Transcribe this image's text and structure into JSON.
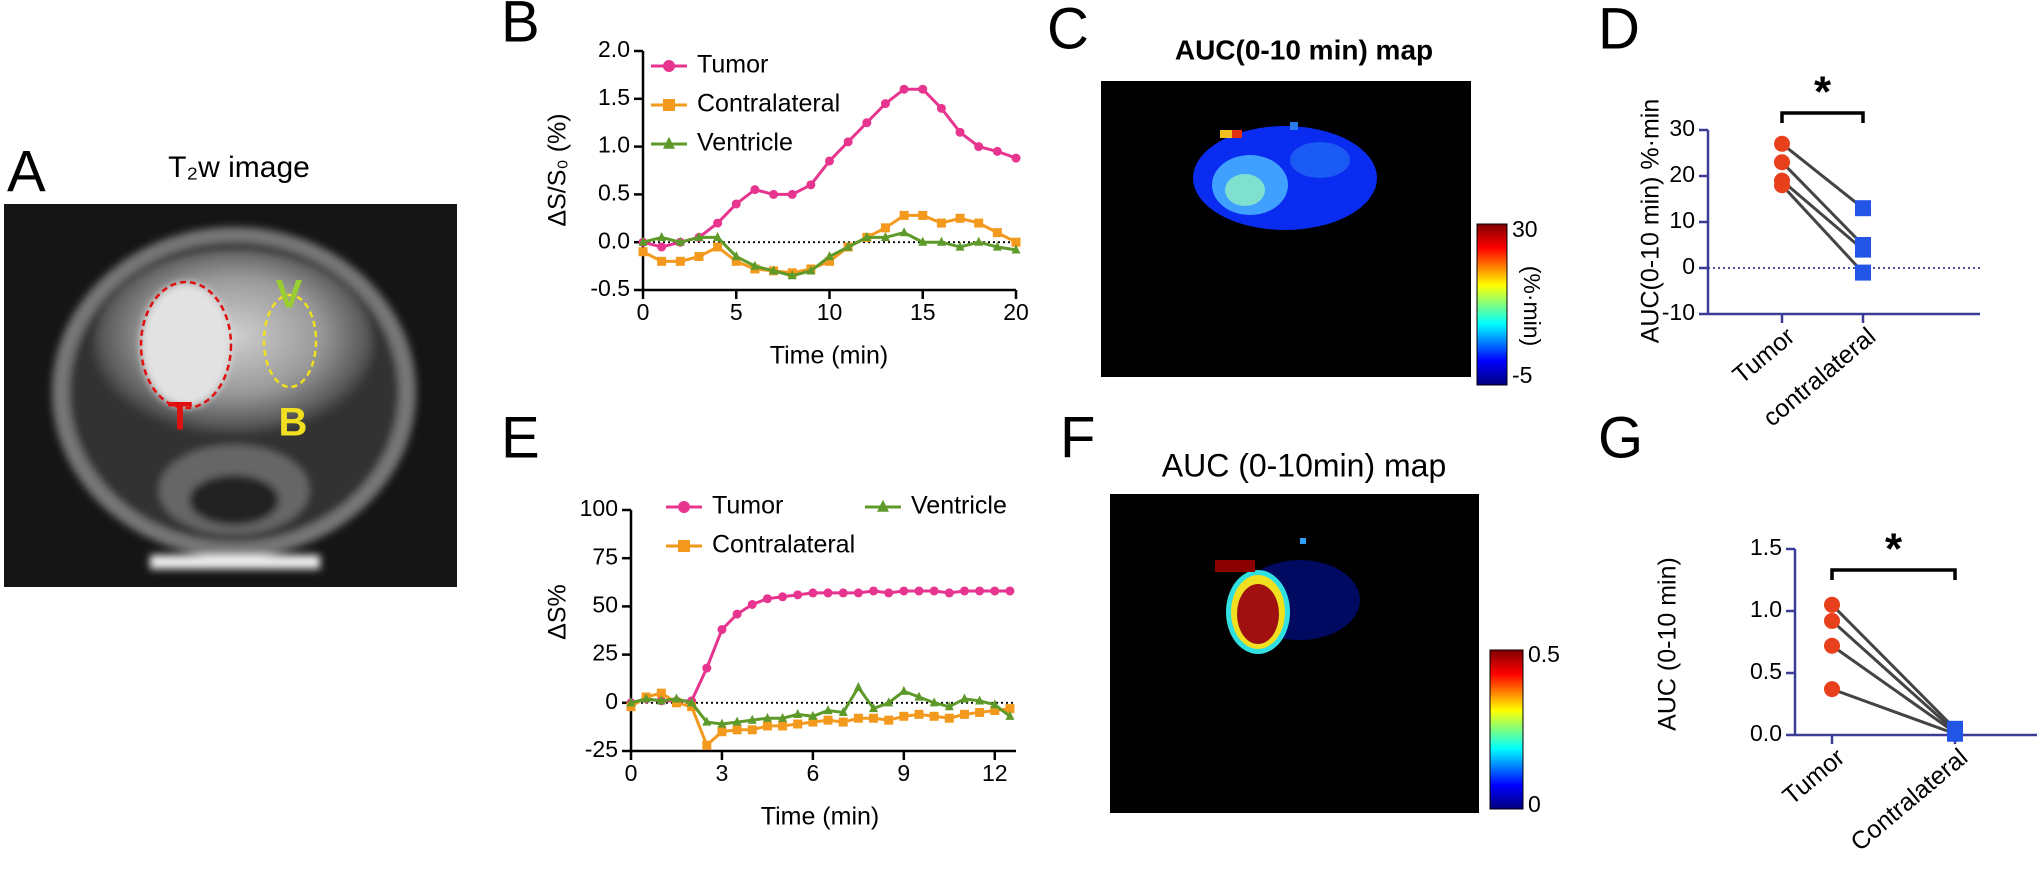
{
  "chart_data": [
    {
      "panel": "B",
      "type": "line",
      "ylabel": "ΔS/S₀ (%)",
      "xlabel": "Time (min)",
      "x": [
        0,
        1,
        2,
        3,
        4,
        5,
        6,
        7,
        8,
        9,
        10,
        11,
        12,
        13,
        14,
        15,
        16,
        17,
        18,
        19,
        20
      ],
      "series": [
        {
          "name": "Tumor",
          "color": "#e6348f",
          "marker": "circle",
          "values": [
            0,
            -0.05,
            0,
            0.05,
            0.2,
            0.4,
            0.55,
            0.5,
            0.5,
            0.6,
            0.85,
            1.05,
            1.25,
            1.45,
            1.6,
            1.6,
            1.4,
            1.15,
            1.0,
            0.95,
            0.88
          ]
        },
        {
          "name": "Contralateral",
          "color": "#f39a1e",
          "marker": "square",
          "values": [
            -0.1,
            -0.2,
            -0.2,
            -0.15,
            -0.05,
            -0.2,
            -0.28,
            -0.3,
            -0.32,
            -0.28,
            -0.2,
            -0.05,
            0.05,
            0.15,
            0.28,
            0.28,
            0.2,
            0.25,
            0.2,
            0.1,
            0
          ]
        },
        {
          "name": "Ventricle",
          "color": "#5e9a2a",
          "marker": "triangle",
          "values": [
            0,
            0.05,
            0,
            0.05,
            0.05,
            -0.15,
            -0.25,
            -0.3,
            -0.35,
            -0.3,
            -0.15,
            -0.05,
            0.05,
            0.05,
            0.1,
            0,
            0,
            -0.05,
            0,
            -0.05,
            -0.08
          ]
        }
      ],
      "xlim": [
        0,
        20
      ],
      "ylim": [
        -0.5,
        2
      ],
      "xticks": [
        0,
        5,
        10,
        15,
        20
      ],
      "yticks": [
        {
          "value": 2,
          "label": "2.0"
        },
        1.5,
        {
          "value": 1,
          "label": "1.0"
        },
        0.5,
        {
          "value": 0,
          "label": "0.0"
        },
        -0.5
      ],
      "reference_line": 0,
      "axis_color": "#000000"
    },
    {
      "panel": "D",
      "type": "paired",
      "ylabel": "AUC(0-10 min) %·min",
      "categories": [
        "Tumor",
        "contralateral"
      ],
      "values": [
        [
          27,
          23,
          19,
          18
        ],
        [
          13,
          5,
          4,
          -1
        ]
      ],
      "colors": [
        "#e8401c",
        "#2255e6"
      ],
      "markers": [
        "circle",
        "square"
      ],
      "ylim": [
        -10,
        30
      ],
      "yticks": [
        -10,
        0,
        10,
        20,
        30
      ],
      "reference_line": 0,
      "significance": "*",
      "axis_color": "#3a3c95"
    },
    {
      "panel": "E",
      "type": "line",
      "ylabel": "ΔS%",
      "xlabel": "Time (min)",
      "x": [
        0,
        0.5,
        1,
        1.5,
        2,
        2.5,
        3,
        3.5,
        4,
        4.5,
        5,
        5.5,
        6,
        6.5,
        7,
        7.5,
        8,
        8.5,
        9,
        9.5,
        10,
        10.5,
        11,
        11.5,
        12,
        12.5
      ],
      "series": [
        {
          "name": "Tumor",
          "color": "#e6348f",
          "marker": "circle",
          "values": [
            0,
            2,
            1,
            1,
            1,
            18,
            38,
            46,
            51,
            54,
            55,
            56,
            57,
            57,
            57,
            57,
            58,
            57,
            58,
            58,
            58,
            57,
            58,
            58,
            58,
            58
          ]
        },
        {
          "name": "Contralateral",
          "color": "#f39a1e",
          "marker": "square",
          "values": [
            -2,
            3,
            5,
            0,
            -2,
            -22,
            -15,
            -14,
            -14,
            -12,
            -12,
            -11,
            -10,
            -9,
            -10,
            -8,
            -8,
            -9,
            -7,
            -6,
            -7,
            -8,
            -6,
            -5,
            -4,
            -3
          ]
        },
        {
          "name": "Ventricle",
          "color": "#5e9a2a",
          "marker": "triangle",
          "values": [
            0,
            2,
            1,
            2,
            0,
            -10,
            -11,
            -10,
            -9,
            -8,
            -8,
            -6,
            -7,
            -4,
            -5,
            8,
            -3,
            0,
            6,
            3,
            0,
            -2,
            2,
            1,
            -1,
            -7
          ]
        }
      ],
      "xlim": [
        0,
        12.7
      ],
      "ylim": [
        -25,
        100
      ],
      "xticks": [
        0,
        3,
        6,
        9,
        12
      ],
      "yticks": [
        -25,
        0,
        25,
        50,
        75,
        100
      ],
      "reference_line": 0,
      "axis_color": "#000000"
    },
    {
      "panel": "G",
      "type": "paired",
      "ylabel": "AUC (0-10 min)",
      "categories": [
        "Tumor",
        "Contralateral"
      ],
      "values": [
        [
          1.05,
          0.92,
          0.72,
          0.37
        ],
        [
          0.05,
          0.03,
          0.02,
          0.01
        ]
      ],
      "colors": [
        "#e8401c",
        "#2255e6"
      ],
      "markers": [
        "circle",
        "square"
      ],
      "ylim": [
        0,
        1.5
      ],
      "yticks": [
        {
          "value": 0,
          "label": "0.0"
        },
        0.5,
        {
          "value": 1,
          "label": "1.0"
        },
        1.5
      ],
      "significance": "*",
      "axis_color": "#3a3c95"
    }
  ],
  "images": [
    {
      "panel": "A",
      "title": "T₂w image",
      "labels": [
        "T",
        "B",
        "V"
      ]
    },
    {
      "panel": "C",
      "title": "AUC(0-10 min) map",
      "colorbar": {
        "max": 30,
        "min": -5,
        "unit": "(%·min)"
      }
    },
    {
      "panel": "F",
      "title": "AUC (0-10min) map",
      "colorbar": {
        "max": 0.5,
        "min": 0
      }
    }
  ]
}
